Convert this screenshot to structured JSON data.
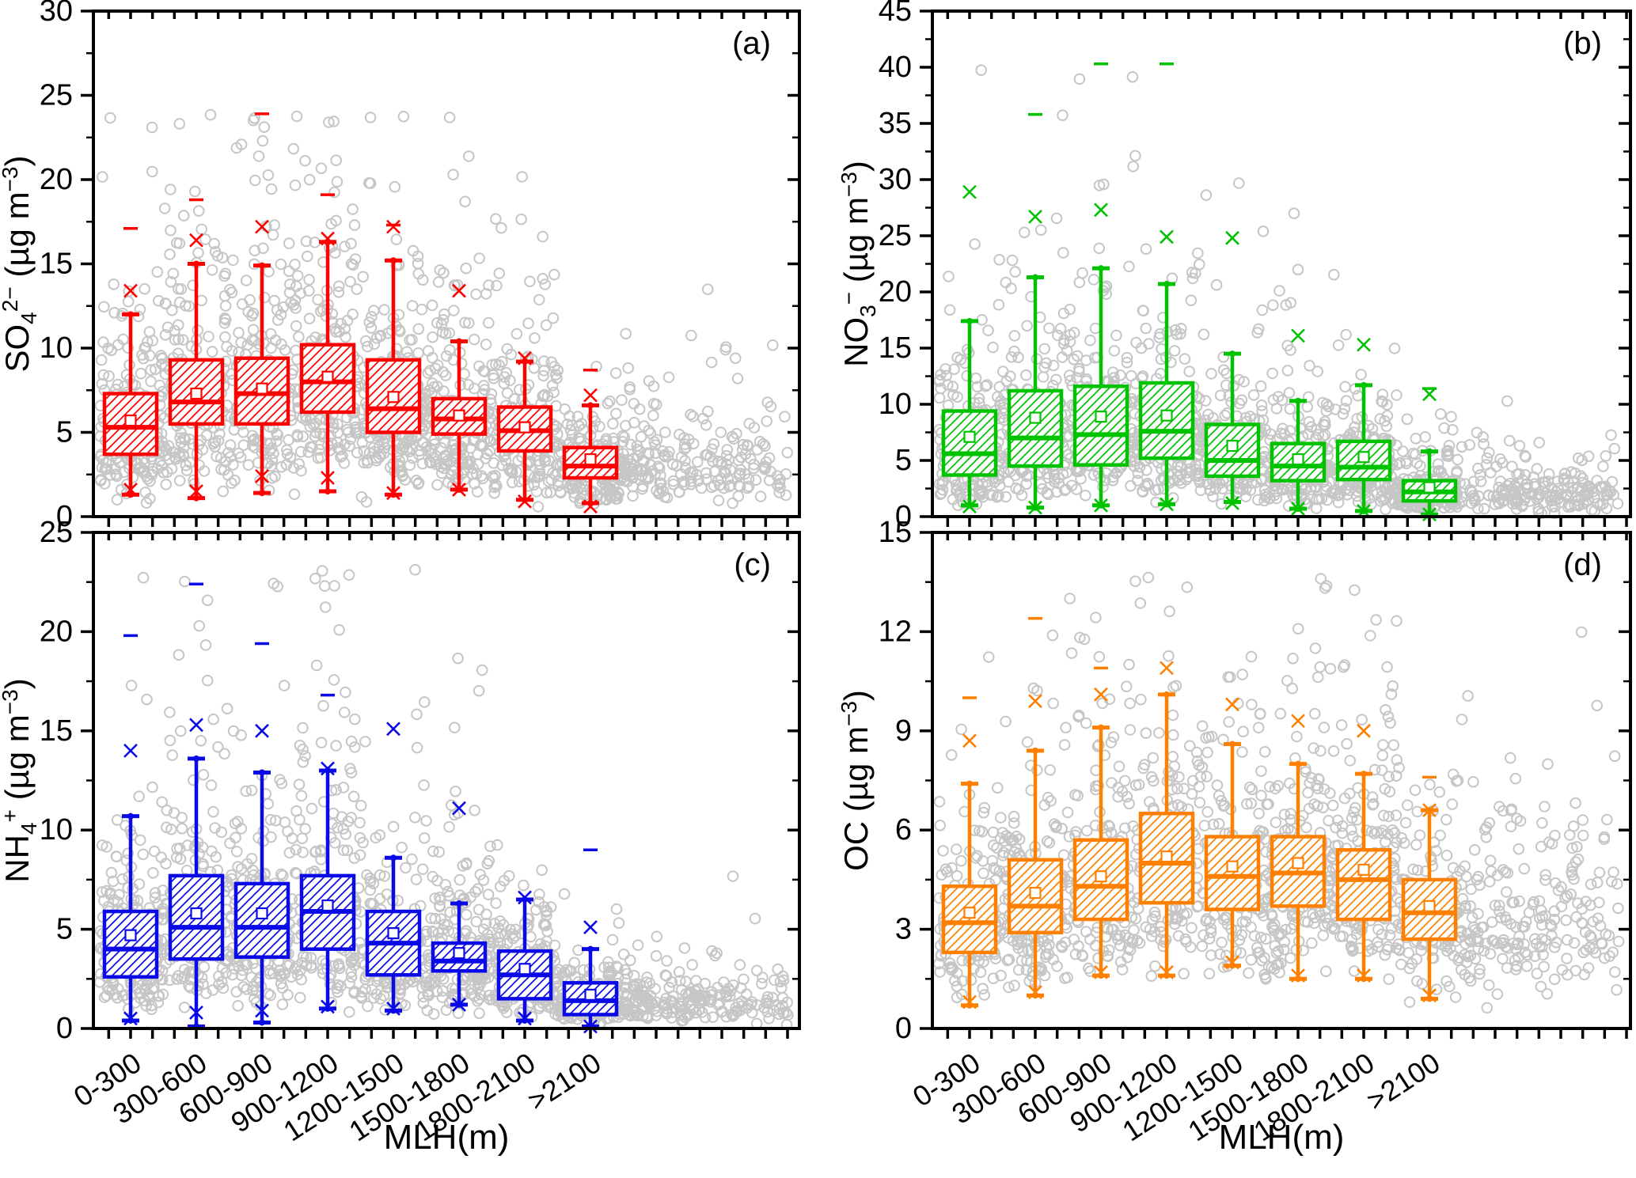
{
  "figure": {
    "background": "#ffffff",
    "description": "Four-panel box-and-whisker chart with gray scatter clouds of aerosol species concentration versus mixing layer height (MLH) bins"
  },
  "style": {
    "scatter_color": "#c6c6c6",
    "frame_color": "#000000",
    "text_color": "#000000"
  },
  "x_axis": {
    "title": "MLH(m)",
    "categories": [
      "0-300",
      "300-600",
      "600-900",
      "900-1200",
      "1200-1500",
      "1500-1800",
      "1800-2100",
      ">2100"
    ]
  },
  "chart_data": [
    {
      "panel": "(a)",
      "type": "box",
      "series": "SO4_2minus",
      "color": "#ff0000",
      "ylabel": "SO4 2− (µg m−3)",
      "ylabel_parts": [
        [
          "SO",
          "n"
        ],
        [
          "4",
          "sub"
        ],
        [
          "2−",
          "sup"
        ],
        [
          " (µg m",
          "n"
        ],
        [
          "−3",
          "sup"
        ],
        [
          ")",
          "n"
        ]
      ],
      "ylim": [
        0,
        30
      ],
      "yticks": [
        0,
        5,
        10,
        15,
        20,
        25,
        30
      ],
      "yminor": 2.5,
      "boxes": [
        {
          "bin": "0-300",
          "whisker_low": 1.3,
          "q1": 3.7,
          "median": 5.3,
          "mean": 5.7,
          "q3": 7.3,
          "whisker_high": 12.0,
          "out_x_high": [
            13.4
          ],
          "out_dash": [
            17.1
          ],
          "out_x_low": [
            1.6
          ]
        },
        {
          "bin": "300-600",
          "whisker_low": 1.1,
          "q1": 5.5,
          "median": 6.8,
          "mean": 7.3,
          "q3": 9.3,
          "whisker_high": 15.0,
          "out_x_high": [
            16.4
          ],
          "out_dash": [
            18.8
          ],
          "out_x_low": [
            1.5
          ]
        },
        {
          "bin": "600-900",
          "whisker_low": 1.4,
          "q1": 5.5,
          "median": 7.3,
          "mean": 7.6,
          "q3": 9.4,
          "whisker_high": 14.9,
          "out_x_high": [
            17.2
          ],
          "out_dash": [
            23.9
          ],
          "out_x_low": [
            2.4
          ]
        },
        {
          "bin": "900-1200",
          "whisker_low": 1.5,
          "q1": 6.2,
          "median": 8.0,
          "mean": 8.3,
          "q3": 10.2,
          "whisker_high": 16.3,
          "out_x_high": [
            16.5
          ],
          "out_dash": [
            19.1
          ],
          "out_x_low": [
            2.3
          ]
        },
        {
          "bin": "1200-1500",
          "whisker_low": 1.3,
          "q1": 5.0,
          "median": 6.4,
          "mean": 7.1,
          "q3": 9.3,
          "whisker_high": 15.2,
          "out_x_high": [
            17.2
          ],
          "out_dash": [
            17.3
          ],
          "out_x_low": [
            1.4
          ]
        },
        {
          "bin": "1500-1800",
          "whisker_low": 1.6,
          "q1": 4.9,
          "median": 5.8,
          "mean": 6.0,
          "q3": 7.0,
          "whisker_high": 10.4,
          "out_x_high": [
            13.4
          ],
          "out_dash": [],
          "out_x_low": [
            1.6
          ]
        },
        {
          "bin": "1800-2100",
          "whisker_low": 1.0,
          "q1": 3.9,
          "median": 5.1,
          "mean": 5.3,
          "q3": 6.5,
          "whisker_high": 9.2,
          "out_x_high": [
            9.4
          ],
          "out_dash": [],
          "out_x_low": [
            0.9
          ]
        },
        {
          "bin": ">2100",
          "whisker_low": 0.8,
          "q1": 2.3,
          "median": 3.0,
          "mean": 3.4,
          "q3": 4.1,
          "whisker_high": 6.6,
          "out_x_high": [
            7.2
          ],
          "out_dash": [
            8.7
          ],
          "out_x_low": [
            0.6
          ]
        }
      ],
      "scatter_sim": {
        "seed": 7,
        "count": 1700,
        "sigma": 0.55,
        "vmax": 24
      }
    },
    {
      "panel": "(b)",
      "type": "box",
      "series": "NO3_minus",
      "color": "#00c300",
      "ylabel": "NO3 − (µg m−3)",
      "ylabel_parts": [
        [
          "NO",
          "n"
        ],
        [
          "3",
          "sub"
        ],
        [
          "−",
          "sup"
        ],
        [
          " (µg m",
          "n"
        ],
        [
          "−3",
          "sup"
        ],
        [
          ")",
          "n"
        ]
      ],
      "ylim": [
        0,
        45
      ],
      "yticks": [
        0,
        5,
        10,
        15,
        20,
        25,
        30,
        35,
        40,
        45
      ],
      "yminor": 2.5,
      "boxes": [
        {
          "bin": "0-300",
          "whisker_low": 1.0,
          "q1": 3.7,
          "median": 5.6,
          "mean": 7.1,
          "q3": 9.4,
          "whisker_high": 17.4,
          "out_x_high": [
            28.9
          ],
          "out_dash": [],
          "out_x_low": [
            0.9
          ]
        },
        {
          "bin": "300-600",
          "whisker_low": 0.8,
          "q1": 4.5,
          "median": 7.0,
          "mean": 8.8,
          "q3": 11.2,
          "whisker_high": 21.3,
          "out_x_high": [
            26.7
          ],
          "out_dash": [
            35.8
          ],
          "out_x_low": [
            0.8
          ]
        },
        {
          "bin": "600-900",
          "whisker_low": 1.0,
          "q1": 4.6,
          "median": 7.3,
          "mean": 8.9,
          "q3": 11.6,
          "whisker_high": 22.1,
          "out_x_high": [
            27.3
          ],
          "out_dash": [
            40.3
          ],
          "out_x_low": [
            1.0
          ]
        },
        {
          "bin": "900-1200",
          "whisker_low": 1.1,
          "q1": 5.2,
          "median": 7.6,
          "mean": 9.0,
          "q3": 11.9,
          "whisker_high": 20.7,
          "out_x_high": [
            24.9
          ],
          "out_dash": [
            40.3
          ],
          "out_x_low": [
            1.1
          ]
        },
        {
          "bin": "1200-1500",
          "whisker_low": 1.3,
          "q1": 3.6,
          "median": 5.0,
          "mean": 6.3,
          "q3": 8.2,
          "whisker_high": 14.5,
          "out_x_high": [
            24.8
          ],
          "out_dash": [],
          "out_x_low": [
            1.2
          ]
        },
        {
          "bin": "1500-1800",
          "whisker_low": 0.7,
          "q1": 3.2,
          "median": 4.5,
          "mean": 5.1,
          "q3": 6.5,
          "whisker_high": 10.3,
          "out_x_high": [
            16.1
          ],
          "out_dash": [],
          "out_x_low": [
            0.7
          ]
        },
        {
          "bin": "1800-2100",
          "whisker_low": 0.5,
          "q1": 3.3,
          "median": 4.4,
          "mean": 5.3,
          "q3": 6.7,
          "whisker_high": 11.7,
          "out_x_high": [
            15.3
          ],
          "out_dash": [],
          "out_x_low": [
            0.5
          ]
        },
        {
          "bin": ">2100",
          "whisker_low": 0.2,
          "q1": 1.4,
          "median": 2.2,
          "mean": 2.6,
          "q3": 3.2,
          "whisker_high": 5.8,
          "out_x_high": [
            10.9
          ],
          "out_dash": [
            11.4
          ],
          "out_x_low": [
            0.2
          ]
        }
      ],
      "scatter_sim": {
        "seed": 13,
        "count": 1600,
        "sigma": 0.62,
        "vmax": 40.5
      }
    },
    {
      "panel": "(c)",
      "type": "box",
      "series": "NH4_plus",
      "color": "#0a0ae8",
      "ylabel": "NH4 + (µg m−3)",
      "ylabel_parts": [
        [
          "NH",
          "n"
        ],
        [
          "4",
          "sub"
        ],
        [
          "+",
          "sup"
        ],
        [
          " (µg m",
          "n"
        ],
        [
          "−3",
          "sup"
        ],
        [
          ")",
          "n"
        ]
      ],
      "ylim": [
        0,
        25
      ],
      "yticks": [
        0,
        5,
        10,
        15,
        20,
        25
      ],
      "yminor": 2.5,
      "boxes": [
        {
          "bin": "0-300",
          "whisker_low": 0.4,
          "q1": 2.6,
          "median": 4.0,
          "mean": 4.7,
          "q3": 5.9,
          "whisker_high": 10.7,
          "out_x_high": [
            14.0
          ],
          "out_dash": [
            19.8
          ],
          "out_x_low": [
            0.5
          ]
        },
        {
          "bin": "300-600",
          "whisker_low": 0.1,
          "q1": 3.5,
          "median": 5.1,
          "mean": 5.8,
          "q3": 7.7,
          "whisker_high": 13.6,
          "out_x_high": [
            15.3
          ],
          "out_dash": [
            22.4
          ],
          "out_x_low": [
            0.8
          ]
        },
        {
          "bin": "600-900",
          "whisker_low": 0.3,
          "q1": 3.6,
          "median": 5.1,
          "mean": 5.8,
          "q3": 7.3,
          "whisker_high": 12.9,
          "out_x_high": [
            15.0
          ],
          "out_dash": [
            19.4
          ],
          "out_x_low": [
            0.9
          ]
        },
        {
          "bin": "900-1200",
          "whisker_low": 1.0,
          "q1": 4.0,
          "median": 5.9,
          "mean": 6.2,
          "q3": 7.7,
          "whisker_high": 13.0,
          "out_x_high": [
            13.1
          ],
          "out_dash": [
            16.8
          ],
          "out_x_low": [
            1.1
          ]
        },
        {
          "bin": "1200-1500",
          "whisker_low": 0.9,
          "q1": 2.7,
          "median": 4.3,
          "mean": 4.8,
          "q3": 5.9,
          "whisker_high": 8.6,
          "out_x_high": [
            15.1
          ],
          "out_dash": [],
          "out_x_low": [
            1.0
          ]
        },
        {
          "bin": "1500-1800",
          "whisker_low": 1.2,
          "q1": 2.9,
          "median": 3.4,
          "mean": 3.8,
          "q3": 4.3,
          "whisker_high": 6.3,
          "out_x_high": [
            11.1
          ],
          "out_dash": [],
          "out_x_low": [
            1.2
          ]
        },
        {
          "bin": "1800-2100",
          "whisker_low": 0.4,
          "q1": 1.5,
          "median": 2.7,
          "mean": 3.0,
          "q3": 3.9,
          "whisker_high": 6.5,
          "out_x_high": [
            6.6
          ],
          "out_dash": [],
          "out_x_low": [
            0.5
          ]
        },
        {
          "bin": ">2100",
          "whisker_low": 0.1,
          "q1": 0.7,
          "median": 1.4,
          "mean": 1.7,
          "q3": 2.3,
          "whisker_high": 4.0,
          "out_x_high": [
            5.1
          ],
          "out_dash": [
            9.0
          ],
          "out_x_low": [
            0.1
          ]
        }
      ],
      "scatter_sim": {
        "seed": 29,
        "count": 1650,
        "sigma": 0.58,
        "vmax": 23.2
      }
    },
    {
      "panel": "(d)",
      "type": "box",
      "series": "OC",
      "color": "#ff8000",
      "ylabel": "OC (µg m−3)",
      "ylabel_parts": [
        [
          "OC (µg m",
          "n"
        ],
        [
          "−3",
          "sup"
        ],
        [
          ")",
          "n"
        ]
      ],
      "ylim": [
        0,
        15
      ],
      "yticks": [
        0,
        3,
        6,
        9,
        12,
        15
      ],
      "yminor": 1.5,
      "boxes": [
        {
          "bin": "0-300",
          "whisker_low": 0.7,
          "q1": 2.3,
          "median": 3.2,
          "mean": 3.5,
          "q3": 4.3,
          "whisker_high": 7.4,
          "out_x_high": [
            8.7
          ],
          "out_dash": [
            10.0
          ],
          "out_x_low": [
            0.8
          ]
        },
        {
          "bin": "300-600",
          "whisker_low": 1.0,
          "q1": 2.9,
          "median": 3.7,
          "mean": 4.1,
          "q3": 5.1,
          "whisker_high": 8.4,
          "out_x_high": [
            9.9
          ],
          "out_dash": [
            12.4
          ],
          "out_x_low": [
            1.1
          ]
        },
        {
          "bin": "600-900",
          "whisker_low": 1.6,
          "q1": 3.3,
          "median": 4.3,
          "mean": 4.6,
          "q3": 5.7,
          "whisker_high": 9.1,
          "out_x_high": [
            10.1
          ],
          "out_dash": [
            10.9
          ],
          "out_x_low": [
            1.7
          ]
        },
        {
          "bin": "900-1200",
          "whisker_low": 1.6,
          "q1": 3.8,
          "median": 5.0,
          "mean": 5.2,
          "q3": 6.5,
          "whisker_high": 10.1,
          "out_x_high": [
            10.9
          ],
          "out_dash": [],
          "out_x_low": [
            1.7
          ]
        },
        {
          "bin": "1200-1500",
          "whisker_low": 1.9,
          "q1": 3.6,
          "median": 4.6,
          "mean": 4.9,
          "q3": 5.8,
          "whisker_high": 8.6,
          "out_x_high": [
            9.8
          ],
          "out_dash": [],
          "out_x_low": [
            2.0
          ]
        },
        {
          "bin": "1500-1800",
          "whisker_low": 1.5,
          "q1": 3.7,
          "median": 4.7,
          "mean": 5.0,
          "q3": 5.8,
          "whisker_high": 8.0,
          "out_x_high": [
            9.3
          ],
          "out_dash": [],
          "out_x_low": [
            1.6
          ]
        },
        {
          "bin": "1800-2100",
          "whisker_low": 1.5,
          "q1": 3.3,
          "median": 4.5,
          "mean": 4.8,
          "q3": 5.4,
          "whisker_high": 7.7,
          "out_x_high": [
            9.0
          ],
          "out_dash": [],
          "out_x_low": [
            1.6
          ]
        },
        {
          "bin": ">2100",
          "whisker_low": 0.9,
          "q1": 2.7,
          "median": 3.5,
          "mean": 3.7,
          "q3": 4.5,
          "whisker_high": 6.6,
          "out_x_high": [
            6.6
          ],
          "out_dash": [
            7.6
          ],
          "out_x_low": [
            1.0
          ]
        }
      ],
      "scatter_sim": {
        "seed": 41,
        "count": 1500,
        "sigma": 0.45,
        "vmax": 13.8
      }
    }
  ]
}
